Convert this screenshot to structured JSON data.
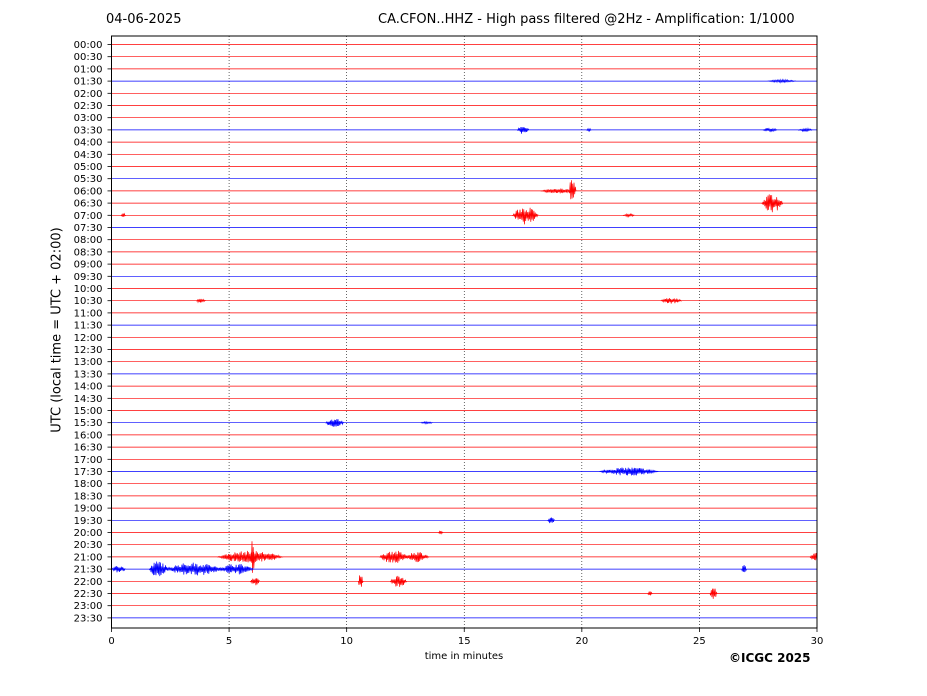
{
  "header": {
    "date": "04-06-2025",
    "title": "CA.CFON..HHZ - High pass filtered @2Hz - Amplification: 1/1000"
  },
  "footer": {
    "copyright": "©ICGC 2025"
  },
  "chart_data": {
    "type": "line",
    "xlabel": "time in minutes",
    "ylabel": "UTC (local time = UTC + 02:00)",
    "xlim": [
      0,
      30
    ],
    "x_ticks": [
      0,
      5,
      10,
      15,
      20,
      25,
      30
    ],
    "grid": "vertical dotted at each x tick",
    "row_colors": [
      "#ff0000",
      "#ff0000",
      "#ff0000",
      "#0000ff"
    ],
    "rows": [
      "00:00",
      "00:30",
      "01:00",
      "01:30",
      "02:00",
      "02:30",
      "03:00",
      "03:30",
      "04:00",
      "04:30",
      "05:00",
      "05:30",
      "06:00",
      "06:30",
      "07:00",
      "07:30",
      "08:00",
      "08:30",
      "09:00",
      "09:30",
      "10:00",
      "10:30",
      "11:00",
      "11:30",
      "12:00",
      "12:30",
      "13:00",
      "13:30",
      "14:00",
      "14:30",
      "15:00",
      "15:30",
      "16:00",
      "16:30",
      "17:00",
      "17:30",
      "18:00",
      "18:30",
      "19:00",
      "19:30",
      "20:00",
      "20:30",
      "21:00",
      "21:30",
      "22:00",
      "22:30",
      "23:00",
      "23:30"
    ],
    "events": [
      {
        "row": "01:30",
        "x": 28.5,
        "amp": 0.12,
        "dur": 1.2
      },
      {
        "row": "03:30",
        "x": 17.5,
        "amp": 0.35,
        "dur": 0.5
      },
      {
        "row": "03:30",
        "x": 20.3,
        "amp": 0.12,
        "dur": 0.2
      },
      {
        "row": "03:30",
        "x": 28.0,
        "amp": 0.18,
        "dur": 0.6
      },
      {
        "row": "03:30",
        "x": 29.5,
        "amp": 0.15,
        "dur": 0.6
      },
      {
        "row": "06:00",
        "x": 19.6,
        "amp": 1.2,
        "dur": 0.3
      },
      {
        "row": "06:00",
        "x": 19.0,
        "amp": 0.2,
        "dur": 1.5
      },
      {
        "row": "06:30",
        "x": 28.1,
        "amp": 0.8,
        "dur": 0.9
      },
      {
        "row": "07:00",
        "x": 17.6,
        "amp": 0.75,
        "dur": 1.1
      },
      {
        "row": "07:00",
        "x": 0.5,
        "amp": 0.15,
        "dur": 0.2
      },
      {
        "row": "07:00",
        "x": 22.0,
        "amp": 0.12,
        "dur": 0.5
      },
      {
        "row": "10:30",
        "x": 23.8,
        "amp": 0.25,
        "dur": 0.9
      },
      {
        "row": "10:30",
        "x": 3.8,
        "amp": 0.18,
        "dur": 0.4
      },
      {
        "row": "15:30",
        "x": 9.5,
        "amp": 0.35,
        "dur": 0.8
      },
      {
        "row": "15:30",
        "x": 13.4,
        "amp": 0.12,
        "dur": 0.5
      },
      {
        "row": "17:30",
        "x": 22.0,
        "amp": 0.35,
        "dur": 2.5
      },
      {
        "row": "19:30",
        "x": 18.7,
        "amp": 0.3,
        "dur": 0.3
      },
      {
        "row": "20:00",
        "x": 14.0,
        "amp": 0.15,
        "dur": 0.2
      },
      {
        "row": "21:00",
        "x": 6.0,
        "amp": 2.2,
        "dur": 0.15
      },
      {
        "row": "21:00",
        "x": 5.9,
        "amp": 0.5,
        "dur": 2.8
      },
      {
        "row": "21:00",
        "x": 12.0,
        "amp": 0.55,
        "dur": 1.2
      },
      {
        "row": "21:00",
        "x": 13.0,
        "amp": 0.45,
        "dur": 1.0
      },
      {
        "row": "21:00",
        "x": 30.0,
        "amp": 0.45,
        "dur": 0.6
      },
      {
        "row": "21:30",
        "x": 2.0,
        "amp": 0.7,
        "dur": 0.8
      },
      {
        "row": "21:30",
        "x": 3.5,
        "amp": 0.55,
        "dur": 2.5
      },
      {
        "row": "21:30",
        "x": 5.3,
        "amp": 0.45,
        "dur": 1.5
      },
      {
        "row": "21:30",
        "x": 0.3,
        "amp": 0.3,
        "dur": 0.6
      },
      {
        "row": "21:30",
        "x": 26.9,
        "amp": 0.45,
        "dur": 0.2
      },
      {
        "row": "22:00",
        "x": 10.6,
        "amp": 0.7,
        "dur": 0.2
      },
      {
        "row": "22:00",
        "x": 12.2,
        "amp": 0.5,
        "dur": 0.7
      },
      {
        "row": "22:00",
        "x": 6.1,
        "amp": 0.35,
        "dur": 0.4
      },
      {
        "row": "22:30",
        "x": 25.6,
        "amp": 0.55,
        "dur": 0.3
      },
      {
        "row": "22:30",
        "x": 22.9,
        "amp": 0.2,
        "dur": 0.2
      }
    ]
  }
}
